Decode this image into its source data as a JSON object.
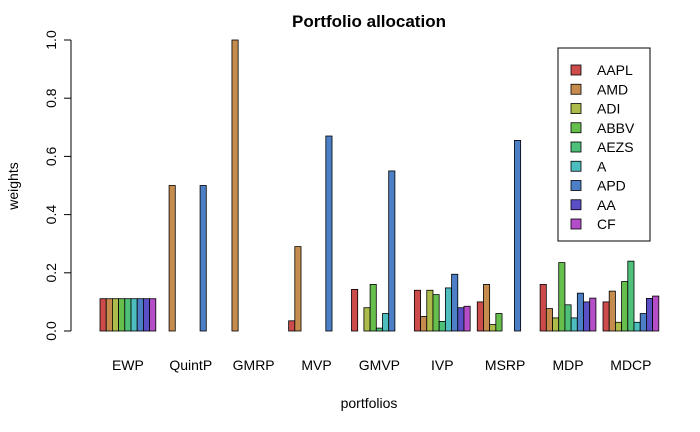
{
  "chart_data": {
    "type": "bar",
    "title": "Portfolio allocation",
    "xlabel": "portfolios",
    "ylabel": "weights",
    "ylim": [
      0,
      1
    ],
    "yticks": [
      "0.0",
      "0.2",
      "0.4",
      "0.6",
      "0.8",
      "1.0"
    ],
    "grid": false,
    "legend_position": "top-right",
    "categories": [
      "EWP",
      "QuintP",
      "GMRP",
      "MVP",
      "GMVP",
      "IVP",
      "MSRP",
      "MDP",
      "MDCP"
    ],
    "series": [
      {
        "name": "AAPL",
        "color": "#CC4C4C",
        "values": [
          0.111,
          0.0,
          0.0,
          0.035,
          0.143,
          0.14,
          0.1,
          0.16,
          0.1
        ]
      },
      {
        "name": "AMD",
        "color": "#C58C4E",
        "values": [
          0.111,
          0.5,
          1.0,
          0.29,
          0.0,
          0.05,
          0.16,
          0.077,
          0.137
        ]
      },
      {
        "name": "ADI",
        "color": "#ADBB4A",
        "values": [
          0.111,
          0.0,
          0.0,
          0.0,
          0.08,
          0.14,
          0.022,
          0.045,
          0.03
        ]
      },
      {
        "name": "ABBV",
        "color": "#66BF4D",
        "values": [
          0.111,
          0.0,
          0.0,
          0.0,
          0.16,
          0.125,
          0.06,
          0.235,
          0.17
        ]
      },
      {
        "name": "AEZS",
        "color": "#4EC07A",
        "values": [
          0.111,
          0.0,
          0.0,
          0.0,
          0.01,
          0.033,
          0.0,
          0.09,
          0.24
        ]
      },
      {
        "name": "A",
        "color": "#4DBDBE",
        "values": [
          0.111,
          0.0,
          0.0,
          0.0,
          0.06,
          0.148,
          0.0,
          0.045,
          0.03
        ]
      },
      {
        "name": "APD",
        "color": "#4C7FC6",
        "values": [
          0.111,
          0.5,
          0.0,
          0.67,
          0.55,
          0.195,
          0.655,
          0.13,
          0.06
        ]
      },
      {
        "name": "AA",
        "color": "#5B4FC6",
        "values": [
          0.111,
          0.0,
          0.0,
          0.0,
          0.0,
          0.08,
          0.0,
          0.1,
          0.112
        ]
      },
      {
        "name": "CF",
        "color": "#B54EC6",
        "values": [
          0.111,
          0.0,
          0.0,
          0.0,
          0.0,
          0.085,
          0.0,
          0.113,
          0.12
        ]
      }
    ]
  }
}
